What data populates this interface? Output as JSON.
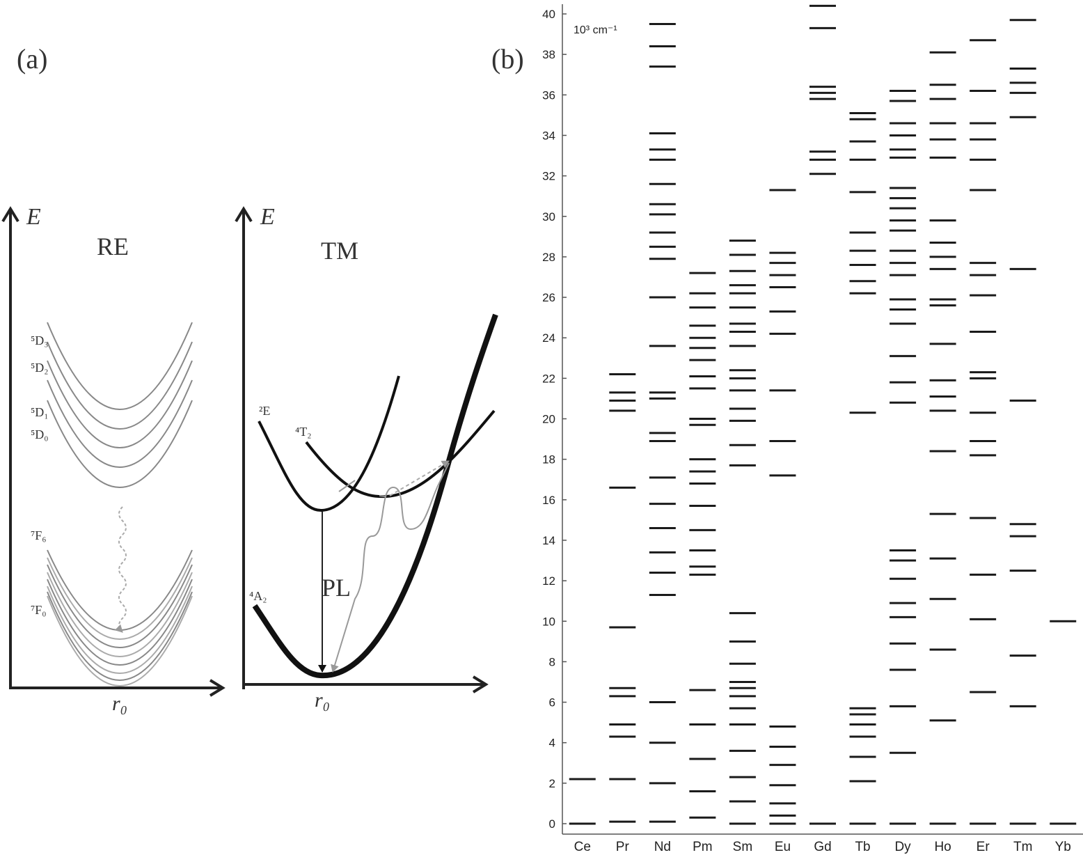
{
  "panel_a": {
    "label": "(a)",
    "re": {
      "axis_label": "E",
      "title": "RE",
      "levels": [
        "⁵D₃",
        "⁵D₂",
        "⁵D₁",
        "⁵D₀",
        "⁷F₆",
        "⁷F₀"
      ],
      "x_label": "r₀"
    },
    "tm": {
      "axis_label": "E",
      "title": "TM",
      "states": [
        "²E",
        "⁴T₂",
        "⁴A₂"
      ],
      "transition": "PL",
      "x_label": "r₀"
    }
  },
  "chart_data": {
    "type": "levels",
    "panel_label": "(b)",
    "unit": "10³ cm⁻¹",
    "color": "#1a1a1a",
    "categories": [
      "Ce",
      "Pr",
      "Nd",
      "Pm",
      "Sm",
      "Eu",
      "Gd",
      "Tb",
      "Dy",
      "Ho",
      "Er",
      "Tm",
      "Yb"
    ],
    "levels": [
      [
        0,
        2.2
      ],
      [
        0.1,
        2.2,
        4.3,
        4.9,
        6.3,
        6.7,
        9.7,
        16.6,
        20.4,
        20.9,
        21.3,
        22.2
      ],
      [
        0.1,
        2.0,
        4.0,
        6.0,
        11.3,
        12.4,
        13.4,
        14.6,
        15.8,
        17.1,
        18.9,
        19.3,
        21.0,
        21.3,
        23.6,
        26.0,
        27.9,
        28.5,
        29.2,
        30.1,
        30.6,
        31.6,
        32.8,
        33.3,
        34.1,
        37.4,
        38.4,
        39.5
      ],
      [
        0.3,
        1.6,
        3.2,
        4.9,
        6.6,
        12.3,
        12.7,
        13.5,
        14.5,
        15.7,
        16.8,
        17.4,
        18.0,
        19.7,
        20.0,
        21.5,
        22.1,
        22.9,
        23.5,
        24.0,
        24.6,
        25.5,
        26.2,
        27.2
      ],
      [
        0,
        1.1,
        2.3,
        3.6,
        4.9,
        5.7,
        6.3,
        6.7,
        7.0,
        7.9,
        9.0,
        10.4,
        17.7,
        18.7,
        19.9,
        20.5,
        21.4,
        22.0,
        22.4,
        23.6,
        24.3,
        24.7,
        25.5,
        26.2,
        26.6,
        27.3,
        28.1,
        28.8
      ],
      [
        0,
        0.4,
        1.0,
        1.9,
        2.9,
        3.8,
        4.8,
        17.2,
        18.9,
        21.4,
        24.2,
        25.3,
        26.5,
        27.1,
        27.7,
        28.2,
        31.3
      ],
      [
        0,
        32.1,
        32.8,
        33.2,
        35.8,
        36.1,
        36.4,
        39.3,
        40.4
      ],
      [
        0,
        2.1,
        3.3,
        4.3,
        4.9,
        5.4,
        5.7,
        20.3,
        26.2,
        26.8,
        27.6,
        28.3,
        29.2,
        31.2,
        32.8,
        33.7,
        34.8,
        35.1
      ],
      [
        0,
        3.5,
        5.8,
        7.6,
        8.9,
        10.2,
        10.9,
        12.1,
        13.0,
        13.5,
        20.8,
        21.8,
        23.1,
        24.7,
        25.4,
        25.9,
        27.1,
        27.7,
        28.3,
        29.3,
        29.8,
        30.4,
        30.9,
        31.4,
        32.9,
        33.3,
        34.0,
        34.6,
        35.7,
        36.2
      ],
      [
        0,
        5.1,
        8.6,
        11.1,
        13.1,
        15.3,
        18.4,
        20.4,
        21.1,
        21.9,
        23.7,
        25.6,
        25.9,
        27.4,
        28.0,
        28.7,
        29.8,
        32.9,
        33.8,
        34.6,
        35.8,
        36.5,
        38.1
      ],
      [
        0,
        6.5,
        10.1,
        12.3,
        15.1,
        18.2,
        18.9,
        20.3,
        22.0,
        22.3,
        24.3,
        26.1,
        27.1,
        27.7,
        31.3,
        32.8,
        33.8,
        34.6,
        36.2,
        38.7
      ],
      [
        0,
        5.8,
        8.3,
        12.5,
        14.2,
        14.8,
        20.9,
        27.4,
        34.9,
        36.1,
        36.6,
        37.3,
        39.7
      ],
      [
        0,
        10.0
      ]
    ],
    "ylim": [
      0,
      40.5
    ],
    "yticks": [
      0,
      2,
      4,
      6,
      8,
      10,
      12,
      14,
      16,
      18,
      20,
      22,
      24,
      26,
      28,
      30,
      32,
      34,
      36,
      38,
      40
    ]
  }
}
